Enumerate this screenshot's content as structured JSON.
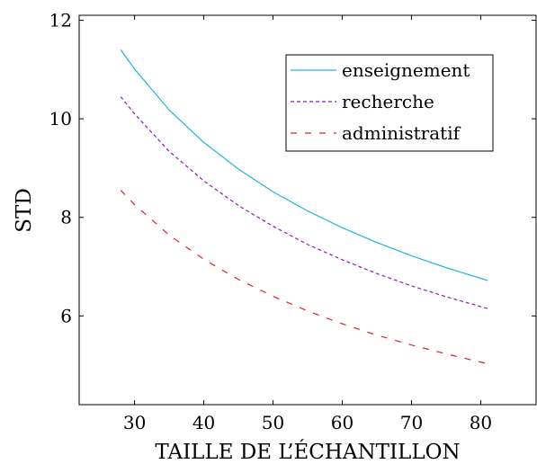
{
  "chart_data": {
    "type": "line",
    "title": "",
    "xlabel": "TAILLE DE L’ÉCHANTILLON",
    "ylabel": "STD",
    "xlim": [
      22,
      88
    ],
    "ylim": [
      4.2,
      12.1
    ],
    "xticks": [
      30,
      40,
      50,
      60,
      70,
      80
    ],
    "yticks": [
      6,
      8,
      10,
      12
    ],
    "grid": false,
    "legend_position": "top-right",
    "series": [
      {
        "name": "enseignement",
        "color": "#22b4e0",
        "dash": "solid",
        "x": [
          28,
          30,
          35,
          40,
          45,
          50,
          55,
          60,
          65,
          70,
          75,
          81
        ],
        "y": [
          11.4,
          11.01,
          10.18,
          9.52,
          8.98,
          8.52,
          8.13,
          7.79,
          7.49,
          7.22,
          6.98,
          6.72
        ]
      },
      {
        "name": "recherche",
        "color": "#8a1fb5",
        "dash": "dashed",
        "x": [
          28,
          30,
          35,
          40,
          45,
          50,
          55,
          60,
          65,
          70,
          75,
          81
        ],
        "y": [
          10.45,
          10.1,
          9.34,
          8.74,
          8.24,
          7.82,
          7.45,
          7.14,
          6.86,
          6.61,
          6.39,
          6.15
        ]
      },
      {
        "name": "administratif",
        "color": "#e0202a",
        "dash": "loosely-dashed",
        "x": [
          28,
          30,
          35,
          40,
          45,
          50,
          55,
          60,
          65,
          70,
          75,
          81
        ],
        "y": [
          8.55,
          8.26,
          7.64,
          7.15,
          6.74,
          6.4,
          6.1,
          5.84,
          5.61,
          5.41,
          5.23,
          5.03
        ]
      }
    ]
  }
}
